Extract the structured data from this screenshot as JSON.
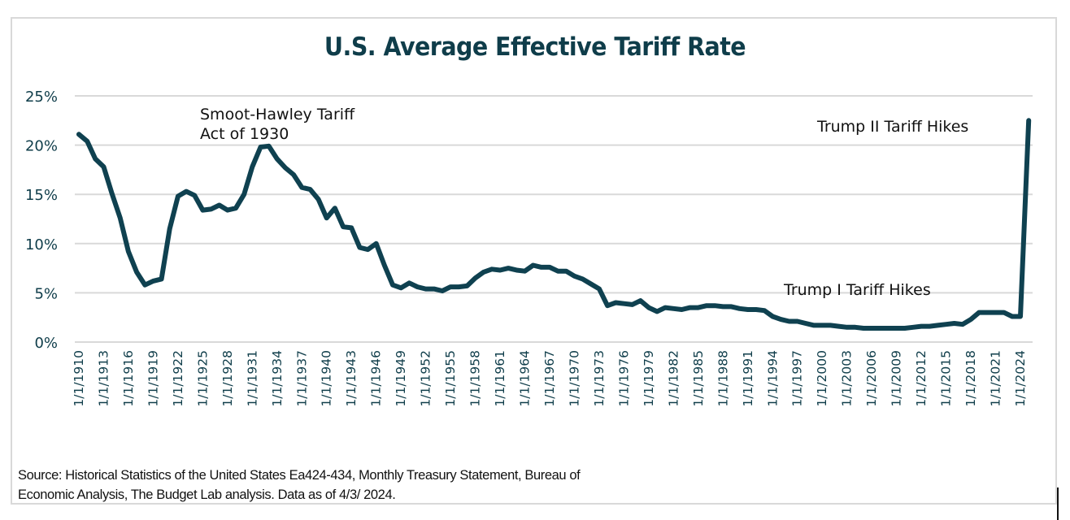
{
  "chart_data": {
    "type": "line",
    "title": "U.S. Average Effective Tariff Rate",
    "xlabel": "",
    "ylabel": "",
    "ylim": [
      0,
      25
    ],
    "y_ticks": [
      0,
      5,
      10,
      15,
      20,
      25
    ],
    "y_tick_labels": [
      "0%",
      "5%",
      "10%",
      "15%",
      "20%",
      "25%"
    ],
    "grid": true,
    "legend": "none",
    "x_tick_labels": [
      "1/1/1910",
      "1/1/1913",
      "1/1/1916",
      "1/1/1919",
      "1/1/1922",
      "1/1/1925",
      "1/1/1928",
      "1/1/1931",
      "1/1/1934",
      "1/1/1937",
      "1/1/1940",
      "1/1/1943",
      "1/1/1946",
      "1/1/1949",
      "1/1/1952",
      "1/1/1955",
      "1/1/1958",
      "1/1/1961",
      "1/1/1964",
      "1/1/1967",
      "1/1/1970",
      "1/1/1973",
      "1/1/1976",
      "1/1/1979",
      "1/1/1982",
      "1/1/1985",
      "1/1/1988",
      "1/1/1991",
      "1/1/1994",
      "1/1/1997",
      "1/1/2000",
      "1/1/2003",
      "1/1/2006",
      "1/1/2009",
      "1/1/2012",
      "1/1/2015",
      "1/1/2018",
      "1/1/2021",
      "1/1/2024"
    ],
    "x_tick_years": [
      1910,
      1913,
      1916,
      1919,
      1922,
      1925,
      1928,
      1931,
      1934,
      1937,
      1940,
      1943,
      1946,
      1949,
      1952,
      1955,
      1958,
      1961,
      1964,
      1967,
      1970,
      1973,
      1976,
      1979,
      1982,
      1985,
      1988,
      1991,
      1994,
      1997,
      2000,
      2003,
      2006,
      2009,
      2012,
      2015,
      2018,
      2021,
      2024
    ],
    "xlim": [
      1910,
      2025
    ],
    "series": [
      {
        "name": "Average Effective Tariff Rate (%)",
        "color": "#0f4150",
        "x": [
          1910,
          1911,
          1912,
          1913,
          1914,
          1915,
          1916,
          1917,
          1918,
          1919,
          1920,
          1921,
          1922,
          1923,
          1924,
          1925,
          1926,
          1927,
          1928,
          1929,
          1930,
          1931,
          1932,
          1933,
          1934,
          1935,
          1936,
          1937,
          1938,
          1939,
          1940,
          1941,
          1942,
          1943,
          1944,
          1945,
          1946,
          1947,
          1948,
          1949,
          1950,
          1951,
          1952,
          1953,
          1954,
          1955,
          1956,
          1957,
          1958,
          1959,
          1960,
          1961,
          1962,
          1963,
          1964,
          1965,
          1966,
          1967,
          1968,
          1969,
          1970,
          1971,
          1972,
          1973,
          1974,
          1975,
          1976,
          1977,
          1978,
          1979,
          1980,
          1981,
          1982,
          1983,
          1984,
          1985,
          1986,
          1987,
          1988,
          1989,
          1990,
          1991,
          1992,
          1993,
          1994,
          1995,
          1996,
          1997,
          1998,
          1999,
          2000,
          2001,
          2002,
          2003,
          2004,
          2005,
          2006,
          2007,
          2008,
          2009,
          2010,
          2011,
          2012,
          2013,
          2014,
          2015,
          2016,
          2017,
          2018,
          2019,
          2020,
          2021,
          2022,
          2023,
          2024,
          2025
        ],
        "values": [
          21.1,
          20.4,
          18.6,
          17.8,
          15.1,
          12.6,
          9.2,
          7.1,
          5.8,
          6.2,
          6.4,
          11.5,
          14.8,
          15.3,
          14.9,
          13.4,
          13.5,
          13.9,
          13.4,
          13.6,
          15.0,
          17.8,
          19.8,
          19.9,
          18.6,
          17.7,
          17.0,
          15.7,
          15.5,
          14.5,
          12.6,
          13.6,
          11.7,
          11.6,
          9.6,
          9.4,
          10.0,
          7.8,
          5.8,
          5.5,
          6.0,
          5.6,
          5.4,
          5.4,
          5.2,
          5.6,
          5.6,
          5.7,
          6.5,
          7.1,
          7.4,
          7.3,
          7.5,
          7.3,
          7.2,
          7.8,
          7.6,
          7.6,
          7.2,
          7.2,
          6.7,
          6.4,
          5.9,
          5.4,
          3.7,
          4.0,
          3.9,
          3.8,
          4.2,
          3.5,
          3.1,
          3.5,
          3.4,
          3.3,
          3.5,
          3.5,
          3.7,
          3.7,
          3.6,
          3.6,
          3.4,
          3.3,
          3.3,
          3.2,
          2.6,
          2.3,
          2.1,
          2.1,
          1.9,
          1.7,
          1.7,
          1.7,
          1.6,
          1.5,
          1.5,
          1.4,
          1.4,
          1.4,
          1.4,
          1.4,
          1.4,
          1.5,
          1.6,
          1.6,
          1.7,
          1.8,
          1.9,
          1.8,
          2.3,
          3.0,
          3.0,
          3.0,
          3.0,
          2.6,
          2.6,
          22.5
        ]
      }
    ],
    "annotations": [
      {
        "lines": [
          "Smoot-Hawley Tariff",
          "Act of 1930"
        ],
        "near_year": 1930
      },
      {
        "lines": [
          "Trump I Tariff Hikes"
        ],
        "near_year": 2018
      },
      {
        "lines": [
          "Trump II Tariff Hikes"
        ],
        "near_year": 2025
      }
    ]
  },
  "source": {
    "line1": "Source:  Historical Statistics of the United States Ea424-434, Monthly Treasury Statement, Bureau of",
    "line2": "Economic Analysis, The Budget Lab analysis.  Data as of 4/3/ 2024."
  }
}
